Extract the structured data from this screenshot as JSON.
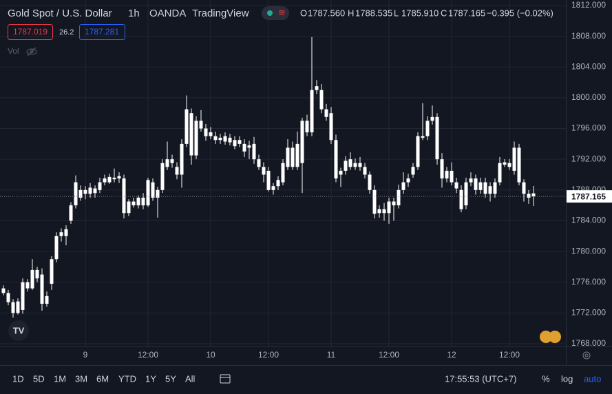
{
  "chart_data": {
    "type": "candlestick",
    "title": "Gold Spot / U.S. Dollar",
    "interval": "1h",
    "exchange": "OANDA",
    "source": "TradingView",
    "ohlc_header": {
      "labels": [
        "O",
        "H",
        "L",
        "C"
      ],
      "values": [
        "1787.560",
        "1788.535",
        "1785.910",
        "1787.165"
      ],
      "change": "−0.395 (−0.02%)"
    },
    "bid": "1787.019",
    "spread": "26.2",
    "ask": "1787.281",
    "volume_label": "Vol",
    "color": "#ffffff",
    "grid": true,
    "ylim": [
      1768,
      1812
    ],
    "yticks": [
      {
        "value": 1768,
        "label": "1768.000"
      },
      {
        "value": 1772,
        "label": "1772.000"
      },
      {
        "value": 1776,
        "label": "1776.000"
      },
      {
        "value": 1780,
        "label": "1780.000"
      },
      {
        "value": 1784,
        "label": "1784.000"
      },
      {
        "value": 1788,
        "label": "1788.000"
      },
      {
        "value": 1792,
        "label": "1792.000"
      },
      {
        "value": 1796,
        "label": "1796.000"
      },
      {
        "value": 1800,
        "label": "1800.000"
      },
      {
        "value": 1804,
        "label": "1804.000"
      },
      {
        "value": 1808,
        "label": "1808.000"
      },
      {
        "value": 1812,
        "label": "1812.000"
      }
    ],
    "last_price": {
      "value": 1787.165,
      "label": "1787.165"
    },
    "categories": [
      null,
      null,
      null,
      null,
      null,
      null,
      null,
      null,
      null,
      null,
      null,
      null,
      null,
      null,
      null,
      null,
      null,
      "9",
      null,
      null,
      null,
      null,
      null,
      null,
      null,
      null,
      null,
      null,
      null,
      null,
      "12:00",
      null,
      null,
      null,
      null,
      null,
      null,
      null,
      null,
      null,
      null,
      null,
      null,
      "10",
      null,
      null,
      null,
      null,
      null,
      null,
      null,
      null,
      null,
      null,
      null,
      "12:00",
      null,
      null,
      null,
      null,
      null,
      null,
      null,
      null,
      null,
      null,
      null,
      null,
      "11",
      null,
      null,
      null,
      null,
      null,
      null,
      null,
      null,
      null,
      null,
      null,
      "12:00",
      null,
      null,
      null,
      null,
      null,
      null,
      null,
      null,
      null,
      null,
      null,
      null,
      "12",
      null,
      null,
      null,
      null,
      null,
      null,
      null,
      null,
      null,
      null,
      null,
      "12:00",
      null,
      null,
      null,
      null,
      null
    ],
    "open": [
      1775.2,
      1774.6,
      1773.4,
      1772.0,
      1772.4,
      1776.0,
      1775.2,
      1777.6,
      1777.0,
      1773.2,
      1775.8,
      1779.0,
      1782.0,
      1782.0,
      1784.0,
      1786.0,
      1787.0,
      1788.0,
      1787.5,
      1788.2,
      1788.0,
      1789.5,
      1789.0,
      1789.6,
      1789.5,
      1789.5,
      1785.0,
      1786.0,
      1786.0,
      1787.0,
      1786.0,
      1789.0,
      1787.0,
      1788.0,
      1791.0,
      1792.0,
      1791.0,
      1790.0,
      1794.0,
      1798.0,
      1792.5,
      1797.0,
      1796.0,
      1795.0,
      1795.0,
      1794.5,
      1795.0,
      1794.2,
      1794.5,
      1794.0,
      1794.0,
      1793.5,
      1794.0,
      1792.0,
      1791.0,
      1790.5,
      1788.0,
      1788.5,
      1789.0,
      1791.0,
      1793.5,
      1791.0,
      1791.5,
      1797.0,
      1795.5,
      1801.0,
      1801.0,
      1798.5,
      1798.0,
      1794.5,
      1790.0,
      1790.5,
      1792.0,
      1791.0,
      1791.5,
      1791.0,
      1790.0,
      1788.0,
      1785.0,
      1785.5,
      1785.0,
      1786.5,
      1786.0,
      1788.0,
      1789.0,
      1790.0,
      1791.0,
      1795.0,
      1795.0,
      1797.0,
      1797.5,
      1792.0,
      1789.5,
      1790.5,
      1789.0,
      1788.0,
      1786.0,
      1789.0,
      1789.5,
      1788.0,
      1789.0,
      1787.5,
      1787.5,
      1789.0,
      1791.3,
      1791.5,
      1790.5,
      1793.5,
      1789.0,
      1787.5,
      1787.56
    ],
    "high": [
      1775.6,
      1775.0,
      1773.8,
      1773.9,
      1776.5,
      1776.4,
      1779.0,
      1778.0,
      1777.8,
      1774.8,
      1779.4,
      1782.5,
      1783.0,
      1783.4,
      1786.4,
      1789.9,
      1788.6,
      1788.5,
      1788.9,
      1788.6,
      1789.6,
      1790.0,
      1790.1,
      1790.8,
      1790.3,
      1790.0,
      1786.8,
      1787.0,
      1787.3,
      1787.6,
      1789.6,
      1789.5,
      1788.4,
      1792.0,
      1794.3,
      1792.6,
      1791.6,
      1794.6,
      1800.3,
      1798.6,
      1797.6,
      1798.4,
      1796.6,
      1796.2,
      1795.6,
      1795.3,
      1795.5,
      1795.3,
      1795.0,
      1795.0,
      1794.6,
      1794.4,
      1794.9,
      1792.6,
      1791.6,
      1791.0,
      1788.9,
      1789.8,
      1792.0,
      1794.6,
      1794.3,
      1795.6,
      1797.4,
      1797.8,
      1807.9,
      1802.3,
      1801.8,
      1799.2,
      1798.8,
      1795.2,
      1790.9,
      1792.4,
      1792.9,
      1792.1,
      1792.3,
      1791.5,
      1790.4,
      1788.6,
      1786.0,
      1786.3,
      1787.0,
      1787.0,
      1788.7,
      1790.3,
      1790.1,
      1791.5,
      1795.5,
      1799.3,
      1797.6,
      1799.0,
      1798.0,
      1792.8,
      1791.0,
      1791.6,
      1789.6,
      1788.6,
      1789.6,
      1790.3,
      1790.0,
      1789.6,
      1789.6,
      1789.0,
      1789.5,
      1792.3,
      1792.0,
      1792.0,
      1794.3,
      1794.0,
      1789.4,
      1788.0,
      1788.535
    ],
    "low": [
      1774.3,
      1773.0,
      1771.4,
      1771.8,
      1771.9,
      1774.8,
      1775.0,
      1776.0,
      1772.3,
      1772.8,
      1775.0,
      1778.6,
      1781.3,
      1780.8,
      1783.6,
      1785.6,
      1786.6,
      1786.8,
      1787.0,
      1787.0,
      1787.6,
      1788.6,
      1788.8,
      1789.0,
      1788.9,
      1784.3,
      1784.6,
      1785.7,
      1785.6,
      1785.5,
      1785.8,
      1786.6,
      1784.4,
      1787.6,
      1790.6,
      1790.9,
      1789.4,
      1788.3,
      1793.6,
      1791.3,
      1792.0,
      1795.6,
      1794.4,
      1794.6,
      1794.0,
      1794.0,
      1793.9,
      1793.8,
      1793.3,
      1793.6,
      1792.3,
      1792.0,
      1791.4,
      1790.6,
      1789.0,
      1787.8,
      1787.4,
      1788.0,
      1788.6,
      1790.6,
      1790.6,
      1790.6,
      1787.6,
      1795.0,
      1795.0,
      1800.5,
      1798.0,
      1797.0,
      1794.0,
      1789.0,
      1788.4,
      1790.0,
      1790.6,
      1790.6,
      1790.5,
      1789.5,
      1787.5,
      1784.3,
      1784.4,
      1784.0,
      1783.6,
      1784.0,
      1785.6,
      1787.5,
      1788.4,
      1789.6,
      1790.6,
      1794.5,
      1794.5,
      1796.5,
      1791.3,
      1788.3,
      1789.0,
      1788.6,
      1787.6,
      1785.1,
      1785.5,
      1788.5,
      1787.4,
      1787.5,
      1787.0,
      1786.5,
      1787.0,
      1788.6,
      1791.0,
      1790.6,
      1790.0,
      1788.6,
      1786.5,
      1786.2,
      1785.91
    ],
    "close": [
      1774.6,
      1773.4,
      1772.0,
      1773.5,
      1776.0,
      1775.2,
      1777.6,
      1776.5,
      1773.2,
      1774.2,
      1779.0,
      1782.0,
      1782.5,
      1782.9,
      1786.0,
      1789.0,
      1788.0,
      1787.5,
      1788.3,
      1787.6,
      1789.0,
      1789.0,
      1789.7,
      1789.4,
      1789.8,
      1785.0,
      1786.5,
      1786.5,
      1787.0,
      1786.0,
      1789.3,
      1787.0,
      1788.0,
      1791.5,
      1792.0,
      1791.5,
      1790.0,
      1794.0,
      1798.5,
      1792.5,
      1797.0,
      1796.0,
      1795.0,
      1795.5,
      1794.5,
      1794.8,
      1794.3,
      1794.8,
      1793.7,
      1794.5,
      1793.0,
      1793.8,
      1792.0,
      1791.0,
      1790.0,
      1788.0,
      1788.5,
      1789.3,
      1791.5,
      1793.5,
      1791.0,
      1794.0,
      1797.0,
      1795.5,
      1801.0,
      1801.5,
      1798.5,
      1797.5,
      1794.5,
      1789.5,
      1790.5,
      1791.8,
      1791.0,
      1791.5,
      1791.0,
      1790.0,
      1788.0,
      1784.9,
      1785.5,
      1785.0,
      1786.5,
      1786.0,
      1788.0,
      1789.0,
      1789.5,
      1791.0,
      1795.0,
      1794.8,
      1797.0,
      1797.5,
      1792.0,
      1789.5,
      1790.5,
      1789.0,
      1788.2,
      1785.5,
      1789.0,
      1789.5,
      1788.0,
      1789.0,
      1787.5,
      1788.5,
      1789.0,
      1791.5,
      1791.6,
      1791.0,
      1793.5,
      1789.0,
      1787.5,
      1787.0,
      1787.165
    ]
  },
  "toolbar": {
    "ranges": [
      "1D",
      "5D",
      "1M",
      "3M",
      "6M",
      "YTD",
      "1Y",
      "5Y",
      "All"
    ],
    "clock": "17:55:53 (UTC+7)",
    "percent": "%",
    "log": "log",
    "auto": "auto"
  }
}
